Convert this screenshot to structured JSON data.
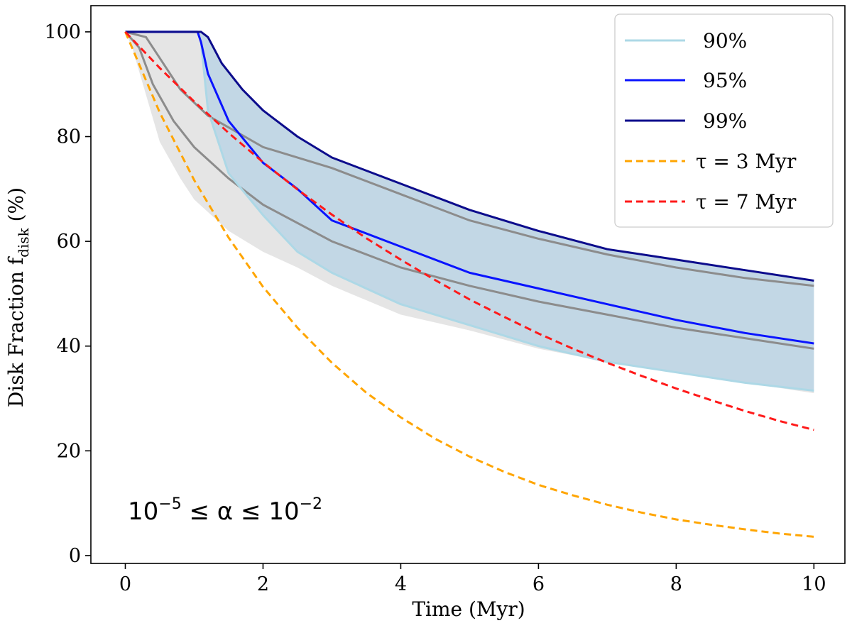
{
  "chart_data": {
    "type": "line",
    "xlabel": "Time (Myr)",
    "ylabel_main": "Disk Fraction f",
    "ylabel_sub": "disk",
    "ylabel_suffix": " (%)",
    "xlim": [
      -0.5,
      10.45
    ],
    "ylim": [
      -1.5,
      105
    ],
    "xticks": [
      0,
      2,
      4,
      6,
      8,
      10
    ],
    "yticks": [
      0,
      20,
      40,
      60,
      80,
      100
    ],
    "grid": false,
    "legend_position": "top-right",
    "annotation": {
      "base1": "10",
      "exp1": "−5",
      "middle": " ≤ α ≤ ",
      "base2": "10",
      "exp2": "−2"
    },
    "colors": {
      "p90": "#add8e6",
      "p95": "#0a14ff",
      "p99": "#0c0c8c",
      "gray_line": "#8c8c8c",
      "gray_band": "#dcdcdc",
      "blue_band": "#b4d2e6",
      "tau3": "#ffa500",
      "tau7": "#ff1a1a"
    },
    "series": [
      {
        "name": "90%",
        "style": "solid",
        "x": [
          0,
          1.0,
          1.05,
          1.1,
          1.2,
          1.5,
          2.0,
          2.5,
          3.0,
          4.0,
          5.0,
          6.0,
          7.0,
          8.0,
          9.0,
          10.0
        ],
        "values": [
          100,
          100,
          100,
          98,
          85,
          73,
          65,
          58,
          54,
          48,
          44,
          40,
          37,
          35,
          33,
          31.5
        ]
      },
      {
        "name": "95%",
        "style": "solid",
        "x": [
          0,
          1.05,
          1.1,
          1.2,
          1.5,
          2.0,
          2.5,
          3.0,
          4.0,
          5.0,
          6.0,
          7.0,
          8.0,
          9.0,
          10.0
        ],
        "values": [
          100,
          100,
          98,
          92,
          83,
          75,
          70,
          64,
          59,
          54,
          51,
          48,
          45,
          42.5,
          40.5
        ]
      },
      {
        "name": "99%",
        "style": "solid",
        "x": [
          0,
          1.1,
          1.2,
          1.4,
          1.7,
          2.0,
          2.5,
          3.0,
          4.0,
          5.0,
          6.0,
          7.0,
          8.0,
          9.0,
          10.0
        ],
        "values": [
          100,
          100,
          99,
          94,
          89,
          85,
          80,
          76,
          71,
          66,
          62,
          58.5,
          56.5,
          54.5,
          52.5
        ]
      },
      {
        "name": "τ = 3 Myr",
        "style": "dashed",
        "x": [
          0,
          0.5,
          1,
          1.5,
          2,
          2.5,
          3,
          3.5,
          4,
          4.5,
          5,
          5.5,
          6,
          6.5,
          7,
          7.5,
          8,
          8.5,
          9,
          9.5,
          10
        ],
        "values": [
          100,
          84.6,
          71.7,
          60.7,
          51.3,
          43.5,
          36.8,
          31.1,
          26.4,
          22.3,
          18.9,
          16.0,
          13.5,
          11.5,
          9.7,
          8.2,
          6.9,
          5.9,
          5.0,
          4.2,
          3.6
        ]
      },
      {
        "name": "τ = 7 Myr",
        "style": "dashed",
        "x": [
          0,
          0.5,
          1,
          1.5,
          2,
          2.5,
          3,
          3.5,
          4,
          4.5,
          5,
          5.5,
          6,
          6.5,
          7,
          7.5,
          8,
          8.5,
          9,
          9.5,
          10
        ],
        "values": [
          100,
          93.1,
          86.7,
          80.7,
          75.1,
          69.9,
          65.1,
          60.6,
          56.5,
          52.6,
          48.9,
          45.6,
          42.4,
          39.5,
          36.8,
          34.3,
          31.9,
          29.7,
          27.6,
          25.7,
          24.0
        ]
      }
    ],
    "gray_lines": [
      {
        "x": [
          0,
          0.2,
          0.4,
          0.7,
          1.0,
          1.5,
          2.0,
          3.0,
          4.0,
          5.0,
          6.0,
          7.0,
          8.0,
          9.0,
          10.0
        ],
        "values": [
          100,
          97,
          90,
          83,
          78,
          72,
          67,
          60,
          55,
          51.5,
          48.5,
          46,
          43.5,
          41.5,
          39.5
        ]
      },
      {
        "x": [
          0,
          0.3,
          0.5,
          0.8,
          1.2,
          1.6,
          2.0,
          3.0,
          4.0,
          5.0,
          6.0,
          7.0,
          8.0,
          9.0,
          10.0
        ],
        "values": [
          100,
          99,
          95,
          89,
          84,
          81,
          78,
          74,
          69,
          64,
          60.5,
          57.5,
          55,
          53,
          51.5
        ]
      }
    ],
    "gray_band_lower": {
      "x": [
        0,
        0.1,
        0.3,
        0.5,
        0.8,
        1.0,
        1.5,
        2.0,
        2.5,
        3.0,
        4.0,
        5.0,
        6.0,
        7.0,
        8.0,
        9.0,
        10.0
      ],
      "values": [
        100,
        97,
        88,
        79,
        72,
        68,
        62,
        58,
        55,
        51.5,
        46,
        43,
        39.5,
        37,
        35,
        33,
        31
      ]
    },
    "legend": [
      "90%",
      "95%",
      "99%",
      "τ = 3 Myr",
      "τ = 7 Myr"
    ]
  }
}
